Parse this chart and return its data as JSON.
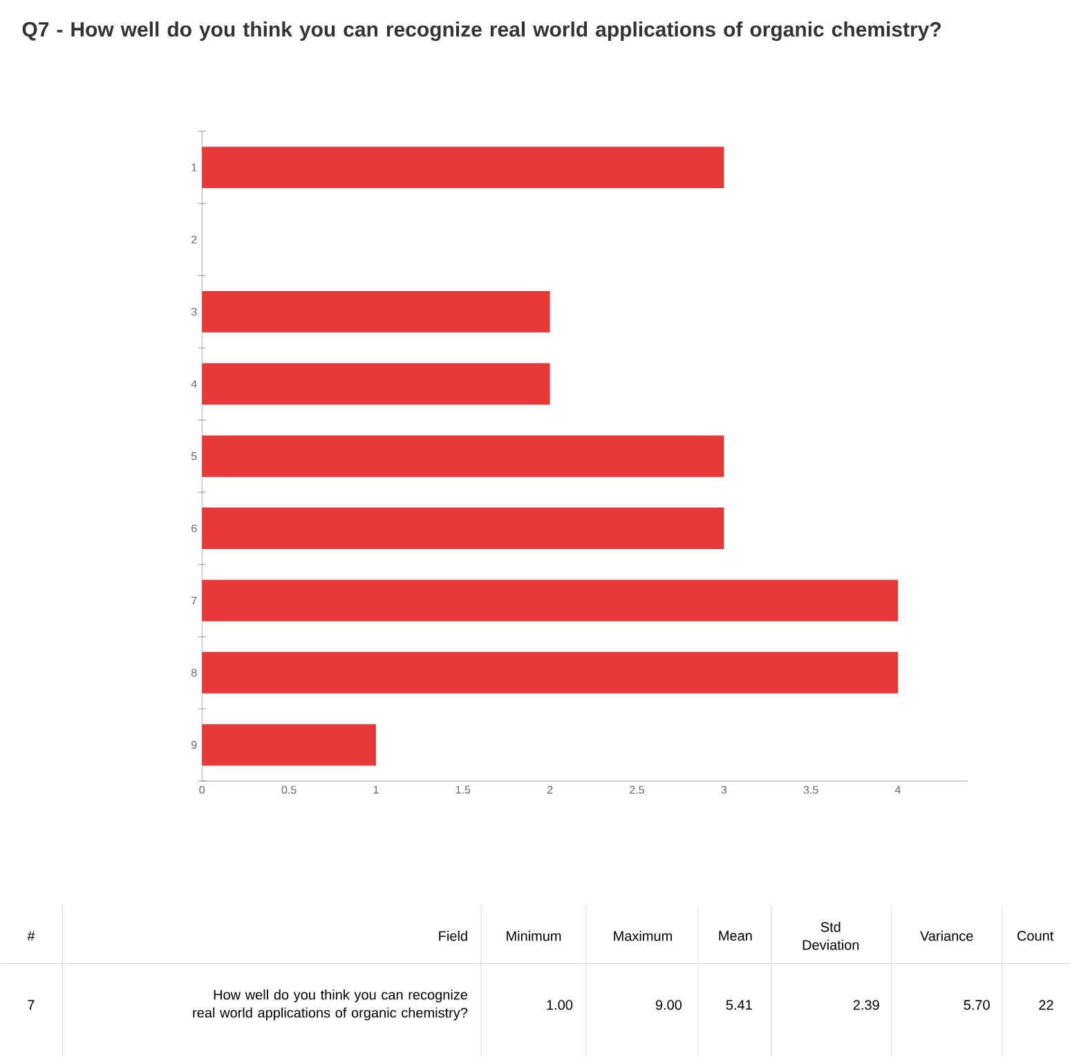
{
  "chart_data": {
    "type": "bar",
    "orientation": "horizontal",
    "title": "Q7 - How well do you think you can recognize real world applications of organic chemistry?",
    "categories": [
      "1",
      "2",
      "3",
      "4",
      "5",
      "6",
      "7",
      "8",
      "9"
    ],
    "values": [
      3,
      0,
      2,
      2,
      3,
      3,
      4,
      4,
      1
    ],
    "color": "#e53a38",
    "xlim": [
      0,
      4.4
    ],
    "xticks": [
      0,
      0.5,
      1,
      1.5,
      2,
      2.5,
      3,
      3.5,
      4
    ],
    "annotations": [
      "#",
      "Field",
      "Minimum",
      "Maximum",
      "Mean",
      "Std Deviation",
      "Variance",
      "Count",
      "7",
      "How well do you think you can recognize real world applications of organic chemistry?",
      "1.00",
      "9.00",
      "5.41",
      "2.39",
      "5.70",
      "22"
    ]
  }
}
